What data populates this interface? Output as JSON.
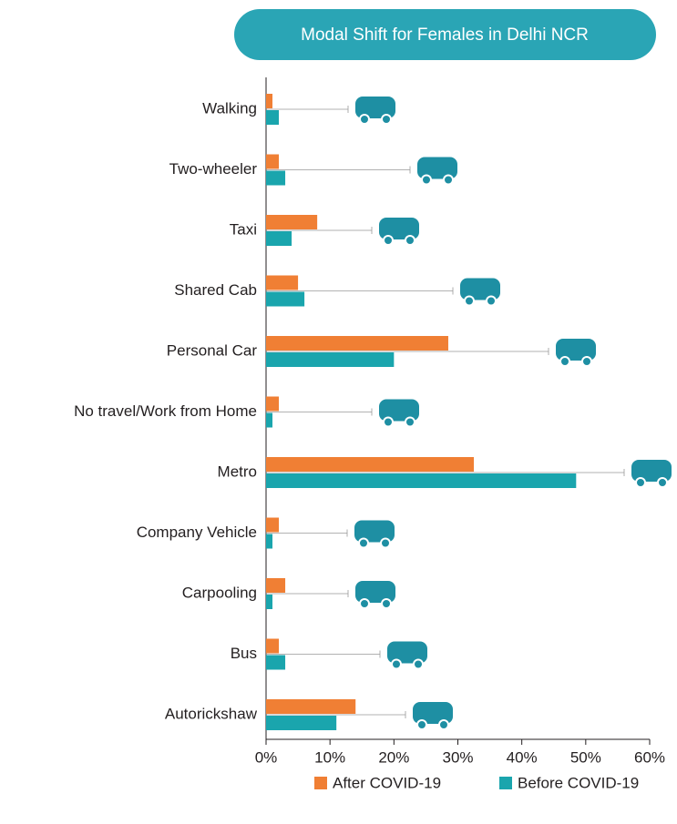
{
  "chart_data": {
    "type": "barh",
    "title": "Modal Shift for Females in Delhi NCR",
    "categories": [
      "Walking",
      "Two-wheeler",
      "Taxi",
      "Shared Cab",
      "Personal Car",
      "No travel/Work from Home",
      "Metro",
      "Company Vehicle",
      "Carpooling",
      "Bus",
      "Autorickshaw"
    ],
    "series": [
      {
        "name": "After COVID-19",
        "color": "#f07f34",
        "values": [
          1,
          2,
          8,
          5,
          28.5,
          2,
          32.5,
          2,
          3,
          2,
          14
        ]
      },
      {
        "name": "Before COVID-19",
        "color": "#1aa5ad",
        "values": [
          2,
          3,
          4,
          6,
          20,
          1,
          48.5,
          1,
          1,
          3,
          11
        ]
      }
    ],
    "xlim": [
      0,
      60
    ],
    "xticks": [
      {
        "value": 0,
        "label": "0%"
      },
      {
        "value": 10,
        "label": "10%"
      },
      {
        "value": 20,
        "label": "20%"
      },
      {
        "value": 30,
        "label": "30%"
      },
      {
        "value": 40,
        "label": "40%"
      },
      {
        "value": 50,
        "label": "50%"
      },
      {
        "value": 60,
        "label": "60%"
      }
    ],
    "legend": "bottom"
  }
}
